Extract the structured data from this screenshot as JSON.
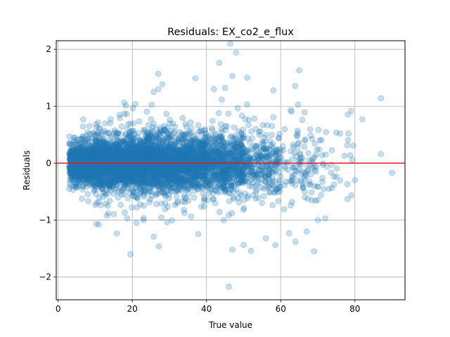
{
  "chart_data": {
    "type": "scatter",
    "title": "Residuals: EX_co2_e_flux",
    "xlabel": "True value",
    "ylabel": "Residuals",
    "xlim": [
      -0.5,
      93.5
    ],
    "ylim": [
      -2.4,
      2.15
    ],
    "xticks": [
      0,
      20,
      40,
      60,
      80
    ],
    "yticks": [
      -2,
      -1,
      0,
      1,
      2
    ],
    "grid": true,
    "reference_line": {
      "y": 0,
      "color": "#e8141c"
    },
    "marker": {
      "color": "#1f77b4",
      "alpha": 0.25,
      "shape": "circle"
    },
    "outliers": [
      [
        48,
        1.94
      ],
      [
        27,
        1.57
      ],
      [
        65,
        1.63
      ],
      [
        47,
        1.53
      ],
      [
        37,
        1.49
      ],
      [
        51,
        1.5
      ],
      [
        87,
        1.14
      ],
      [
        87,
        0.16
      ],
      [
        90,
        -0.17
      ],
      [
        82,
        0.77
      ],
      [
        79,
        0.92
      ],
      [
        80,
        -0.3
      ],
      [
        19.5,
        -1.6
      ],
      [
        46,
        -2.17
      ],
      [
        52,
        -1.54
      ],
      [
        47,
        -1.52
      ],
      [
        69,
        -1.55
      ],
      [
        64,
        -1.38
      ],
      [
        72,
        -0.97
      ],
      [
        70,
        -1.0
      ],
      [
        67,
        -1.2
      ],
      [
        73,
        -0.45
      ],
      [
        78,
        -0.63
      ],
      [
        76,
        0.52
      ],
      [
        11,
        -1.08
      ],
      [
        23,
        -1.0
      ],
      [
        56,
        -1.32
      ],
      [
        58,
        1.28
      ],
      [
        42,
        1.3
      ],
      [
        45,
        1.32
      ]
    ],
    "bulk_density": [
      {
        "x_range": [
          3,
          10
        ],
        "residual_spread": 0.28,
        "points": 900
      },
      {
        "x_range": [
          10,
          20
        ],
        "residual_spread": 0.35,
        "points": 1400
      },
      {
        "x_range": [
          20,
          30
        ],
        "residual_spread": 0.38,
        "points": 1300
      },
      {
        "x_range": [
          30,
          40
        ],
        "residual_spread": 0.38,
        "points": 1000
      },
      {
        "x_range": [
          40,
          50
        ],
        "residual_spread": 0.42,
        "points": 650
      },
      {
        "x_range": [
          50,
          60
        ],
        "residual_spread": 0.48,
        "points": 280
      },
      {
        "x_range": [
          60,
          70
        ],
        "residual_spread": 0.52,
        "points": 110
      },
      {
        "x_range": [
          70,
          80
        ],
        "residual_spread": 0.55,
        "points": 35
      }
    ]
  }
}
